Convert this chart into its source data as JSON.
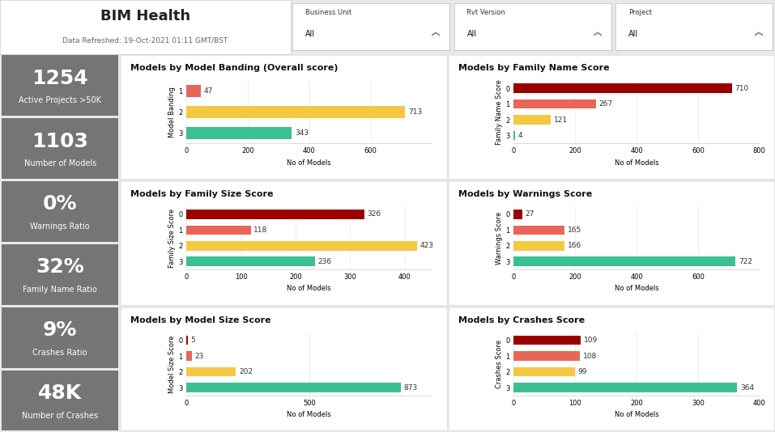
{
  "title": "BIM Health",
  "subtitle": "Data Refreshed: 19-Oct-2021 01:11 GMT/BST",
  "filters": [
    {
      "label": "Business Unit",
      "value": "All"
    },
    {
      "label": "Rvt Version",
      "value": "All"
    },
    {
      "label": "Project",
      "value": "All"
    }
  ],
  "kpi_cards": [
    {
      "value": "1254",
      "label": "Active Projects >50K"
    },
    {
      "value": "1103",
      "label": "Number of Models"
    },
    {
      "value": "0%",
      "label": "Warnings Ratio"
    },
    {
      "value": "32%",
      "label": "Family Name Ratio"
    },
    {
      "value": "9%",
      "label": "Crashes Ratio"
    },
    {
      "value": "48K",
      "label": "Number of Crashes"
    }
  ],
  "charts": [
    {
      "title": "Models by Model Banding (Overall score)",
      "ylabel": "Model Banding",
      "xlabel": "No of Models",
      "categories": [
        "1",
        "2",
        "3"
      ],
      "values": [
        47,
        713,
        343
      ],
      "colors": [
        "#e8655a",
        "#f5c842",
        "#3dbf96"
      ],
      "xlim": [
        0,
        800
      ],
      "xticks": [
        0,
        200,
        400,
        600
      ]
    },
    {
      "title": "Models by Family Name Score",
      "ylabel": "Family Name Score",
      "xlabel": "No of Models",
      "categories": [
        "0",
        "1",
        "2",
        "3"
      ],
      "values": [
        710,
        267,
        121,
        4
      ],
      "colors": [
        "#9b0000",
        "#e8655a",
        "#f5c842",
        "#3dbf96"
      ],
      "xlim": [
        0,
        800
      ],
      "xticks": [
        0,
        200,
        400,
        600,
        800
      ]
    },
    {
      "title": "Models by Family Size Score",
      "ylabel": "Family Size Score",
      "xlabel": "No of Models",
      "categories": [
        "0",
        "1",
        "2",
        "3"
      ],
      "values": [
        326,
        118,
        423,
        236
      ],
      "colors": [
        "#9b0000",
        "#e8655a",
        "#f5c842",
        "#3dbf96"
      ],
      "xlim": [
        0,
        450
      ],
      "xticks": [
        0,
        100,
        200,
        300,
        400
      ]
    },
    {
      "title": "Models by Warnings Score",
      "ylabel": "Warnings Score",
      "xlabel": "No of Models",
      "categories": [
        "0",
        "1",
        "2",
        "3"
      ],
      "values": [
        27,
        165,
        166,
        722
      ],
      "colors": [
        "#9b0000",
        "#e8655a",
        "#f5c842",
        "#3dbf96"
      ],
      "xlim": [
        0,
        800
      ],
      "xticks": [
        0,
        200,
        400,
        600
      ]
    },
    {
      "title": "Models by Model Size Score",
      "ylabel": "Model Size Score",
      "xlabel": "No of Models",
      "categories": [
        "0",
        "1",
        "2",
        "3"
      ],
      "values": [
        5,
        23,
        202,
        873
      ],
      "colors": [
        "#9b0000",
        "#e8655a",
        "#f5c842",
        "#3dbf96"
      ],
      "xlim": [
        0,
        1000
      ],
      "xticks": [
        0,
        500
      ]
    },
    {
      "title": "Models by Crashes Score",
      "ylabel": "Crashes Score",
      "xlabel": "No of Models",
      "categories": [
        "0",
        "1",
        "2",
        "3"
      ],
      "values": [
        109,
        108,
        99,
        364
      ],
      "colors": [
        "#9b0000",
        "#e8655a",
        "#f5c842",
        "#3dbf96"
      ],
      "xlim": [
        0,
        400
      ],
      "xticks": [
        0,
        100,
        200,
        300,
        400
      ]
    }
  ],
  "bg_color": "#e8e8e8",
  "kpi_bg": "#757575",
  "kpi_text_color": "#ffffff",
  "chart_bg": "#ffffff",
  "title_font_size": 13,
  "kpi_value_font_size": 18,
  "kpi_label_font_size": 7,
  "chart_title_font_size": 8,
  "bar_label_font_size": 6.5,
  "axis_font_size": 6,
  "tick_font_size": 6
}
